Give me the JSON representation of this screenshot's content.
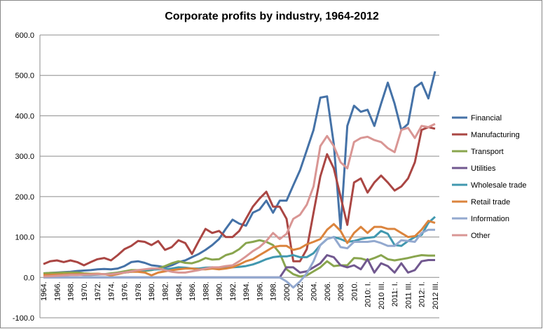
{
  "chart_data": {
    "type": "line",
    "title": "Corporate profits by industry, 1964-2012",
    "xlabel": "",
    "ylabel": "",
    "ylim": [
      -100,
      600
    ],
    "y_ticks": [
      "-100.0",
      "0.0",
      "100.0",
      "200.0",
      "300.0",
      "400.0",
      "500.0",
      "600.0"
    ],
    "y_tick_values": [
      -100,
      0,
      100,
      200,
      300,
      400,
      500,
      600
    ],
    "grid": "horizontal",
    "legend_position": "right",
    "x_tick_labels": [
      "1964.",
      "1966.",
      "1968.",
      "1970.",
      "1972.",
      "1974.",
      "1976.",
      "1978.",
      "1980.",
      "1982.",
      "1984.",
      "1986.",
      "1988.",
      "1990.",
      "1992.",
      "1994.",
      "1996.",
      "1998.",
      "2000.",
      "2002.",
      "2004.",
      "2006.",
      "2008.",
      "2010.",
      "2010: I.",
      "2010 III.",
      "2011: I.",
      "2011 III.",
      "2012: I.",
      "2012 III."
    ],
    "series": [
      {
        "name": "Financial",
        "color": "#4572A7",
        "values": [
          10,
          11,
          12,
          13,
          14,
          16,
          17,
          18,
          20,
          21,
          20,
          22,
          28,
          38,
          40,
          36,
          30,
          28,
          25,
          30,
          38,
          42,
          50,
          58,
          68,
          80,
          95,
          120,
          143,
          133,
          128,
          160,
          168,
          190,
          160,
          190,
          190,
          228,
          265,
          315,
          365,
          445,
          448,
          330,
          120,
          375,
          425,
          410,
          415,
          375,
          430,
          482,
          430,
          365,
          380,
          470,
          482,
          443,
          510
        ]
      },
      {
        "name": "Manufacturing",
        "color": "#AA4643",
        "values": [
          33,
          40,
          42,
          38,
          42,
          38,
          30,
          38,
          45,
          48,
          42,
          55,
          70,
          78,
          90,
          88,
          80,
          90,
          68,
          75,
          92,
          85,
          58,
          90,
          120,
          110,
          115,
          100,
          100,
          115,
          145,
          175,
          195,
          212,
          175,
          175,
          145,
          40,
          40,
          70,
          160,
          250,
          305,
          270,
          200,
          130,
          235,
          245,
          210,
          235,
          252,
          235,
          215,
          225,
          245,
          285,
          365,
          372,
          368
        ]
      },
      {
        "name": "Transport",
        "color": "#89A54E",
        "values": [
          10,
          11,
          11,
          12,
          12,
          12,
          10,
          9,
          9,
          8,
          10,
          12,
          15,
          18,
          18,
          16,
          18,
          22,
          28,
          35,
          40,
          36,
          35,
          40,
          48,
          44,
          45,
          55,
          60,
          70,
          85,
          88,
          92,
          88,
          80,
          60,
          20,
          8,
          2,
          5,
          15,
          25,
          40,
          28,
          30,
          30,
          48,
          47,
          42,
          48,
          55,
          45,
          42,
          45,
          48,
          52,
          55,
          54,
          54
        ]
      },
      {
        "name": "Utilities",
        "color": "#71588F",
        "values": [
          0,
          0,
          0,
          0,
          0,
          0,
          0,
          0,
          0,
          0,
          0,
          0,
          0,
          0,
          0,
          0,
          0,
          0,
          0,
          0,
          0,
          0,
          0,
          0,
          0,
          0,
          0,
          0,
          0,
          0,
          0,
          0,
          0,
          0,
          0,
          0,
          25,
          25,
          12,
          15,
          25,
          35,
          55,
          50,
          30,
          25,
          30,
          20,
          45,
          12,
          35,
          28,
          12,
          35,
          12,
          18,
          40,
          43,
          43
        ]
      },
      {
        "name": "Wholesale trade",
        "color": "#4198AF",
        "values": [
          5,
          5,
          6,
          6,
          7,
          7,
          6,
          6,
          7,
          8,
          8,
          10,
          12,
          14,
          16,
          18,
          19,
          20,
          20,
          22,
          25,
          24,
          22,
          22,
          24,
          25,
          22,
          24,
          25,
          26,
          28,
          32,
          38,
          45,
          50,
          52,
          52,
          55,
          50,
          50,
          60,
          80,
          95,
          100,
          95,
          88,
          90,
          95,
          98,
          100,
          115,
          108,
          80,
          78,
          90,
          100,
          105,
          135,
          150
        ]
      },
      {
        "name": "Retail trade",
        "color": "#DB843D",
        "values": [
          6,
          6,
          7,
          7,
          8,
          8,
          8,
          8,
          9,
          8,
          5,
          8,
          12,
          14,
          14,
          12,
          5,
          12,
          15,
          18,
          20,
          22,
          22,
          20,
          20,
          22,
          20,
          22,
          25,
          32,
          40,
          45,
          55,
          65,
          75,
          78,
          78,
          68,
          72,
          82,
          88,
          95,
          118,
          132,
          115,
          85,
          110,
          125,
          110,
          125,
          125,
          120,
          120,
          110,
          100,
          102,
          118,
          140,
          135
        ]
      },
      {
        "name": "Information",
        "color": "#93A9CF",
        "values": [
          0,
          0,
          0,
          0,
          0,
          0,
          0,
          0,
          0,
          0,
          0,
          0,
          0,
          0,
          0,
          0,
          0,
          0,
          0,
          0,
          0,
          0,
          0,
          0,
          0,
          0,
          0,
          0,
          0,
          0,
          0,
          0,
          0,
          0,
          0,
          0,
          -10,
          -25,
          -10,
          10,
          40,
          80,
          95,
          100,
          75,
          72,
          88,
          88,
          88,
          90,
          85,
          78,
          78,
          92,
          90,
          88,
          110,
          118,
          118
        ]
      },
      {
        "name": "Other",
        "color": "#D99694",
        "values": [
          2,
          3,
          4,
          5,
          6,
          6,
          7,
          7,
          8,
          8,
          8,
          10,
          12,
          15,
          18,
          20,
          22,
          22,
          18,
          14,
          12,
          12,
          15,
          18,
          22,
          25,
          25,
          28,
          30,
          40,
          52,
          65,
          75,
          90,
          110,
          95,
          108,
          145,
          155,
          180,
          225,
          325,
          350,
          325,
          285,
          270,
          335,
          345,
          348,
          340,
          335,
          320,
          310,
          365,
          370,
          345,
          375,
          372,
          380
        ]
      }
    ]
  }
}
